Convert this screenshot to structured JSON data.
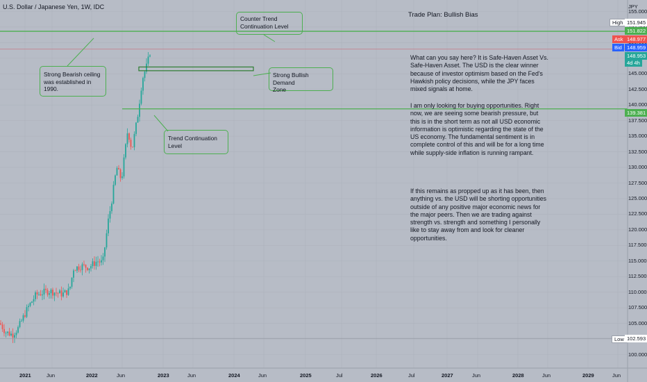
{
  "legend": {
    "symbol": "U.S. Dollar / Japanese Yen, 1W, IDC"
  },
  "currency": "JPY",
  "trade_plan_title": "Trade Plan: Bullish Bias",
  "notes": [
    "What can you say here?  It is Safe-Haven Asset Vs. Safe-Haven Asset.  The USD is the clear winner because of investor optimism based on the Fed's Hawkish policy decisions, while the JPY faces mixed signals at home.",
    "I am only looking for buying opportunities.  Right now, we are seeing some bearish pressure, but this is in the short term as not all USD economic information is optimistic regarding the state of the US economy.  The fundamental sentiment is in complete control of this and will be for a long time while supply-side inflation is running rampant.",
    "If this remains as propped up as it has been, then anything vs. the USD will be shorting opportunities outside of any positive major economic news for the major peers.  Then we are trading against strength vs. strength and something I personally like to stay away from and look for cleaner opportunities."
  ],
  "callouts": {
    "counter_trend": "Counter Trend\nContinuation Level",
    "bearish_ceiling": "Strong Bearish ceiling\nwas established in\n1990.",
    "bullish_demand": "Strong Bullish Demand\nZone",
    "trend_continuation": "Trend Continuation\nLevel"
  },
  "price_axis": {
    "ticks": [
      "155.000",
      "152.500",
      "150.000",
      "147.500",
      "145.000",
      "142.500",
      "140.000",
      "137.500",
      "135.000",
      "132.500",
      "130.000",
      "127.500",
      "125.000",
      "122.500",
      "120.000",
      "117.500",
      "115.000",
      "112.500",
      "110.000",
      "107.500",
      "105.000",
      "102.500",
      "100.000"
    ],
    "high_label": "High",
    "high_value": "151.945",
    "green_level": "151.822",
    "ask_label": "Ask",
    "ask_value": "148.977",
    "bid_label": "Bid",
    "bid_value": "148.959",
    "last_value": "148.953",
    "countdown": "4d 4h",
    "level_value": "139.381",
    "low_label": "Low",
    "low_value": "102.593"
  },
  "time_axis": [
    "2021",
    "Jun",
    "2022",
    "Jun",
    "2023",
    "Jun",
    "2024",
    "Jun",
    "2025",
    "Jul",
    "2026",
    "Jul",
    "2027",
    "Jun",
    "2028",
    "Jun",
    "2029",
    "Jun"
  ],
  "colors": {
    "background": "#b7bcc6",
    "up": "#26a69a",
    "down": "#ef5350",
    "level_line": "#4caf50",
    "bid": "#2962ff"
  },
  "chart_data": {
    "type": "candlestick",
    "symbol": "USDJPY",
    "timeframe": "1W",
    "ylim": [
      100,
      156
    ],
    "levels": {
      "ceiling": 151.822,
      "trend_continuation": 139.381,
      "low": 102.593,
      "high": 151.945
    },
    "series_summary": [
      {
        "date": "2021-01",
        "close": 103.2
      },
      {
        "date": "2021-03",
        "close": 109.5
      },
      {
        "date": "2021-06",
        "close": 110.6
      },
      {
        "date": "2021-09",
        "close": 110.0
      },
      {
        "date": "2021-11",
        "close": 114.5
      },
      {
        "date": "2022-02",
        "close": 115.0
      },
      {
        "date": "2022-03",
        "close": 122.0
      },
      {
        "date": "2022-04",
        "close": 130.5
      },
      {
        "date": "2022-06",
        "close": 136.0
      },
      {
        "date": "2022-08",
        "close": 137.5
      },
      {
        "date": "2022-09",
        "close": 144.0
      },
      {
        "date": "2022-10",
        "close": 148.95
      }
    ]
  }
}
